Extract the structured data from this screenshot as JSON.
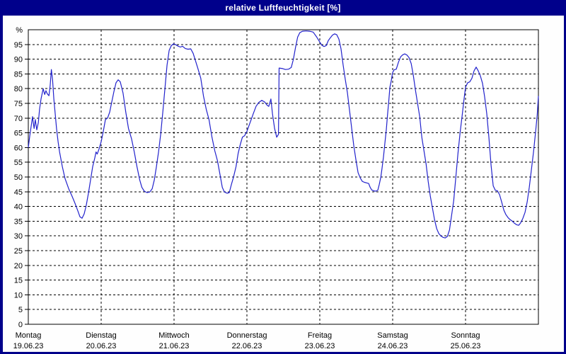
{
  "window": {
    "title": "relative Luftfeuchtigkeit [%]"
  },
  "colors": {
    "chrome": "#00008b",
    "title_text": "#ffffff",
    "panel_bg": "#fefefe",
    "plot_bg": "#ffffff",
    "grid": "#000000",
    "axis": "#000000",
    "label_text": "#000000",
    "series": "#2222cc"
  },
  "chart_data": {
    "type": "line",
    "title": "relative Luftfeuchtigkeit [%]",
    "ylabel": "relative Luftfeuchtigkeit",
    "y_axis_unit_label": "%",
    "ylim": [
      0,
      100
    ],
    "y_ticks": [
      0,
      5,
      10,
      15,
      20,
      25,
      30,
      35,
      40,
      45,
      50,
      55,
      60,
      65,
      70,
      75,
      80,
      85,
      90,
      95
    ],
    "grid": "dashed",
    "legend": "none",
    "x_axis": {
      "unit": "hours",
      "range_hours": [
        0,
        168
      ],
      "hours_per_day": 24
    },
    "days": [
      {
        "name": "Montag",
        "date": "19.06.23"
      },
      {
        "name": "Dienstag",
        "date": "20.06.23"
      },
      {
        "name": "Mittwoch",
        "date": "21.06.23"
      },
      {
        "name": "Donnerstag",
        "date": "22.06.23"
      },
      {
        "name": "Freitag",
        "date": "23.06.23"
      },
      {
        "name": "Samstag",
        "date": "24.06.23"
      },
      {
        "name": "Sonntag",
        "date": "25.06.23"
      }
    ],
    "series": [
      {
        "name": "relative Luftfeuchtigkeit [%]",
        "color": "#2222cc",
        "points": [
          [
            0,
            60
          ],
          [
            0.5,
            64
          ],
          [
            0.9,
            67
          ],
          [
            1.4,
            70.5
          ],
          [
            1.7,
            68
          ],
          [
            1.9,
            66.5
          ],
          [
            2.3,
            69.5
          ],
          [
            2.8,
            66
          ],
          [
            3.3,
            68.5
          ],
          [
            3.7,
            73
          ],
          [
            4.2,
            76.5
          ],
          [
            4.9,
            80
          ],
          [
            5.4,
            78
          ],
          [
            5.8,
            79.3
          ],
          [
            6.3,
            78.2
          ],
          [
            6.8,
            77.6
          ],
          [
            7.2,
            81
          ],
          [
            7.6,
            86.5
          ],
          [
            8,
            83
          ],
          [
            8.4,
            76.5
          ],
          [
            8.9,
            71
          ],
          [
            9.3,
            66.5
          ],
          [
            9.8,
            62
          ],
          [
            10.3,
            58.5
          ],
          [
            11.2,
            53.5
          ],
          [
            12.1,
            49.5
          ],
          [
            13.3,
            46
          ],
          [
            14.4,
            43.5
          ],
          [
            15.4,
            41
          ],
          [
            16.3,
            38.5
          ],
          [
            17,
            36.5
          ],
          [
            17.7,
            36
          ],
          [
            18.4,
            37.5
          ],
          [
            19.1,
            40.5
          ],
          [
            19.8,
            44.5
          ],
          [
            20.5,
            49
          ],
          [
            21.2,
            53.5
          ],
          [
            21.9,
            56.5
          ],
          [
            22.3,
            58.5
          ],
          [
            22.7,
            57.8
          ],
          [
            23.3,
            59.5
          ],
          [
            24,
            62
          ],
          [
            24.7,
            65.5
          ],
          [
            25.4,
            69.5
          ],
          [
            26.1,
            70
          ],
          [
            26.8,
            72
          ],
          [
            27.5,
            75.5
          ],
          [
            28.2,
            79
          ],
          [
            28.9,
            82
          ],
          [
            29.6,
            83
          ],
          [
            30.3,
            82.3
          ],
          [
            31.2,
            78.5
          ],
          [
            32.1,
            72
          ],
          [
            33,
            66.5
          ],
          [
            34,
            63
          ],
          [
            34.9,
            58.5
          ],
          [
            35.8,
            53.5
          ],
          [
            36.7,
            49
          ],
          [
            37.4,
            46.5
          ],
          [
            38.2,
            45.2
          ],
          [
            39.1,
            44.7
          ],
          [
            40,
            44.9
          ],
          [
            40.8,
            46
          ],
          [
            41.5,
            49
          ],
          [
            42.2,
            53.5
          ],
          [
            42.9,
            58.5
          ],
          [
            43.6,
            64.5
          ],
          [
            44.3,
            72
          ],
          [
            45,
            80
          ],
          [
            45.7,
            88
          ],
          [
            46.4,
            93
          ],
          [
            47.1,
            94.6
          ],
          [
            47.8,
            95.2
          ],
          [
            48.4,
            95
          ],
          [
            49.4,
            94.4
          ],
          [
            50.1,
            94.1
          ],
          [
            50.8,
            94.4
          ],
          [
            51.7,
            93.6
          ],
          [
            52.6,
            93.4
          ],
          [
            53.5,
            93.5
          ],
          [
            54.3,
            92
          ],
          [
            54.9,
            90
          ],
          [
            55.8,
            87
          ],
          [
            56.8,
            83.5
          ],
          [
            57.7,
            77.5
          ],
          [
            58.6,
            73
          ],
          [
            59.5,
            69.5
          ],
          [
            60.5,
            63.5
          ],
          [
            61.4,
            59
          ],
          [
            62.3,
            55.5
          ],
          [
            63.2,
            50.5
          ],
          [
            63.9,
            46.5
          ],
          [
            64.6,
            44.9
          ],
          [
            65.5,
            44.5
          ],
          [
            66.2,
            44.7
          ],
          [
            66.9,
            47.5
          ],
          [
            67.6,
            50
          ],
          [
            68.4,
            53.5
          ],
          [
            69.1,
            58
          ],
          [
            69.8,
            61
          ],
          [
            70.5,
            63.5
          ],
          [
            71.2,
            64
          ],
          [
            72,
            65.5
          ],
          [
            72.7,
            67.5
          ],
          [
            73.4,
            69.5
          ],
          [
            74.1,
            71.5
          ],
          [
            75,
            74
          ],
          [
            75.9,
            75.3
          ],
          [
            76.9,
            76
          ],
          [
            77.8,
            75.5
          ],
          [
            78.7,
            74.3
          ],
          [
            79.2,
            74
          ],
          [
            79.9,
            76.5
          ],
          [
            80.4,
            71.5
          ],
          [
            81.1,
            66.5
          ],
          [
            81.8,
            63.5
          ],
          [
            82.4,
            64.5
          ],
          [
            82.6,
            87
          ],
          [
            83.8,
            86.8
          ],
          [
            84.7,
            86.5
          ],
          [
            85.7,
            86.6
          ],
          [
            86.6,
            87.2
          ],
          [
            87.3,
            90
          ],
          [
            88,
            94
          ],
          [
            88.7,
            97.5
          ],
          [
            89.4,
            99
          ],
          [
            90.3,
            99.5
          ],
          [
            91.5,
            99.6
          ],
          [
            92.6,
            99.5
          ],
          [
            93.8,
            99.2
          ],
          [
            95,
            97.5
          ],
          [
            96,
            95.8
          ],
          [
            96.7,
            94.7
          ],
          [
            97.4,
            94.3
          ],
          [
            98.1,
            94.6
          ],
          [
            98.8,
            96.3
          ],
          [
            99.5,
            97.3
          ],
          [
            100.2,
            98.2
          ],
          [
            100.9,
            98.6
          ],
          [
            101.6,
            98.3
          ],
          [
            102.3,
            96.8
          ],
          [
            103,
            93.5
          ],
          [
            103.7,
            88
          ],
          [
            104.4,
            83
          ],
          [
            105.1,
            78.5
          ],
          [
            105.8,
            72.5
          ],
          [
            106.5,
            66.5
          ],
          [
            107.2,
            60.5
          ],
          [
            107.9,
            55.8
          ],
          [
            108.6,
            51.5
          ],
          [
            109.3,
            49.7
          ],
          [
            110,
            48.5
          ],
          [
            110.7,
            48.2
          ],
          [
            111.4,
            48
          ],
          [
            112.1,
            47.8
          ],
          [
            112.6,
            46.5
          ],
          [
            113.1,
            45.6
          ],
          [
            113.8,
            45.3
          ],
          [
            114.5,
            45.2
          ],
          [
            115.1,
            45.5
          ],
          [
            115.6,
            47.5
          ],
          [
            116.1,
            50
          ],
          [
            116.5,
            53
          ],
          [
            117,
            57
          ],
          [
            117.4,
            61
          ],
          [
            117.9,
            66
          ],
          [
            118.3,
            71
          ],
          [
            118.7,
            75.5
          ],
          [
            119.1,
            80.5
          ],
          [
            119.5,
            82.5
          ],
          [
            119.8,
            84.3
          ],
          [
            120,
            85.5
          ],
          [
            120.5,
            86.4
          ],
          [
            121.2,
            86.6
          ],
          [
            121.9,
            89
          ],
          [
            122.6,
            90.8
          ],
          [
            123.3,
            91.5
          ],
          [
            124,
            91.8
          ],
          [
            124.7,
            91.4
          ],
          [
            125.4,
            90.5
          ],
          [
            126.1,
            88.5
          ],
          [
            126.8,
            84.5
          ],
          [
            127.5,
            79.5
          ],
          [
            128.2,
            75
          ],
          [
            128.9,
            70.5
          ],
          [
            129.6,
            63.5
          ],
          [
            130.3,
            59
          ],
          [
            131,
            54.5
          ],
          [
            131.7,
            48.5
          ],
          [
            132.4,
            43.5
          ],
          [
            133.1,
            39.5
          ],
          [
            133.8,
            35.5
          ],
          [
            134.5,
            32.5
          ],
          [
            135.2,
            30.8
          ],
          [
            135.9,
            30
          ],
          [
            136.6,
            29.5
          ],
          [
            137.3,
            29.3
          ],
          [
            138,
            29.8
          ],
          [
            138.7,
            32
          ],
          [
            139.4,
            37
          ],
          [
            140.1,
            42
          ],
          [
            140.8,
            50
          ],
          [
            141.5,
            58
          ],
          [
            142.2,
            65
          ],
          [
            142.9,
            71
          ],
          [
            143.5,
            76.5
          ],
          [
            144,
            80.5
          ],
          [
            144.7,
            82
          ],
          [
            145.4,
            82.3
          ],
          [
            146.1,
            83.5
          ],
          [
            146.8,
            86
          ],
          [
            147.5,
            87.3
          ],
          [
            148.2,
            86
          ],
          [
            148.9,
            84.3
          ],
          [
            149.6,
            81.8
          ],
          [
            150.3,
            77.2
          ],
          [
            151,
            71.5
          ],
          [
            151.7,
            63.5
          ],
          [
            152.4,
            54
          ],
          [
            153.1,
            47
          ],
          [
            153.8,
            45.5
          ],
          [
            154.5,
            45.3
          ],
          [
            155.2,
            44
          ],
          [
            155.9,
            41.5
          ],
          [
            156.6,
            38.8
          ],
          [
            157.3,
            37.2
          ],
          [
            158,
            36.2
          ],
          [
            158.7,
            35.5
          ],
          [
            159.4,
            35
          ],
          [
            160.1,
            34.3
          ],
          [
            160.8,
            33.8
          ],
          [
            161.5,
            33.6
          ],
          [
            162.2,
            34.5
          ],
          [
            162.9,
            36
          ],
          [
            163.6,
            38
          ],
          [
            164.3,
            41.5
          ],
          [
            165,
            46.5
          ],
          [
            165.7,
            52.5
          ],
          [
            166.4,
            58.5
          ],
          [
            167.1,
            65.5
          ],
          [
            167.6,
            71
          ],
          [
            168,
            77.5
          ]
        ]
      }
    ]
  }
}
